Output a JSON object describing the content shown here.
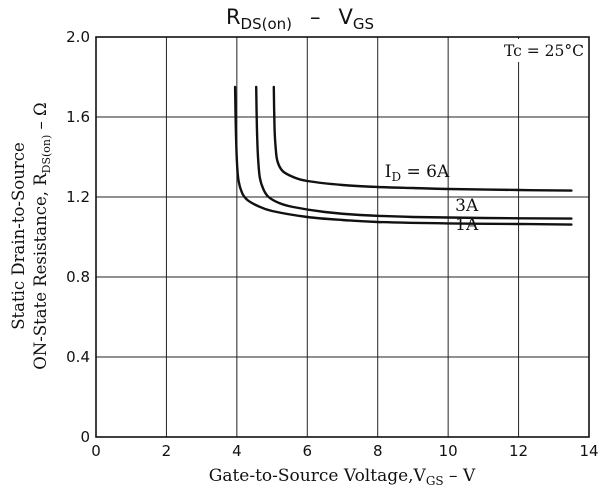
{
  "chart_data": {
    "type": "line",
    "title": {
      "main": "R",
      "sub": "DS(on)",
      "dash": "–",
      "main2": "V",
      "sub2": "GS"
    },
    "xlabel": {
      "text": "Gate-to-Source Voltage,V",
      "sub": "GS",
      "unit": " – V"
    },
    "ylabel": {
      "line1": "Static Drain-to-Source",
      "line2a": "ON-State Resistance, R",
      "line2sub": "DS(on)",
      "line2b": " – Ω"
    },
    "condition": "Tc = 25°C",
    "xlim": [
      0,
      14
    ],
    "ylim": [
      0,
      2.0
    ],
    "x_ticks": [
      "0",
      "2",
      "4",
      "6",
      "8",
      "10",
      "12",
      "14"
    ],
    "x_tick_values": [
      0,
      2,
      4,
      6,
      8,
      10,
      12,
      14
    ],
    "y_ticks": [
      "0",
      "0.4",
      "0.8",
      "1.2",
      "1.6",
      "2.0"
    ],
    "y_tick_values": [
      0,
      0.4,
      0.8,
      1.2,
      1.6,
      2.0
    ],
    "grid": true,
    "series": [
      {
        "name": "1A",
        "label_prefix": "",
        "label_sub": "",
        "label_suffix": "1A",
        "label_at": [
          10.2,
          1.035
        ],
        "points": [
          [
            3.95,
            1.75
          ],
          [
            3.97,
            1.55
          ],
          [
            4.0,
            1.38
          ],
          [
            4.05,
            1.28
          ],
          [
            4.15,
            1.22
          ],
          [
            4.3,
            1.185
          ],
          [
            4.6,
            1.155
          ],
          [
            5.0,
            1.13
          ],
          [
            6.0,
            1.1
          ],
          [
            7.0,
            1.085
          ],
          [
            8.0,
            1.075
          ],
          [
            10.0,
            1.068
          ],
          [
            12.0,
            1.065
          ],
          [
            13.5,
            1.062
          ]
        ]
      },
      {
        "name": "3A",
        "label_prefix": "",
        "label_sub": "",
        "label_suffix": "3A",
        "label_at": [
          10.2,
          1.13
        ],
        "points": [
          [
            4.55,
            1.75
          ],
          [
            4.57,
            1.55
          ],
          [
            4.6,
            1.4
          ],
          [
            4.65,
            1.3
          ],
          [
            4.75,
            1.24
          ],
          [
            4.9,
            1.2
          ],
          [
            5.2,
            1.17
          ],
          [
            5.6,
            1.15
          ],
          [
            6.5,
            1.125
          ],
          [
            7.5,
            1.11
          ],
          [
            9.0,
            1.1
          ],
          [
            11.0,
            1.095
          ],
          [
            13.5,
            1.092
          ]
        ]
      },
      {
        "name": "6A",
        "label_prefix": "I",
        "label_sub": "D",
        "label_suffix": " = 6A",
        "label_at": [
          8.2,
          1.3
        ],
        "points": [
          [
            5.05,
            1.75
          ],
          [
            5.07,
            1.55
          ],
          [
            5.1,
            1.45
          ],
          [
            5.15,
            1.38
          ],
          [
            5.3,
            1.33
          ],
          [
            5.6,
            1.3
          ],
          [
            6.0,
            1.28
          ],
          [
            7.0,
            1.26
          ],
          [
            8.0,
            1.25
          ],
          [
            9.0,
            1.245
          ],
          [
            10.0,
            1.24
          ],
          [
            12.0,
            1.235
          ],
          [
            13.5,
            1.232
          ]
        ]
      }
    ]
  }
}
